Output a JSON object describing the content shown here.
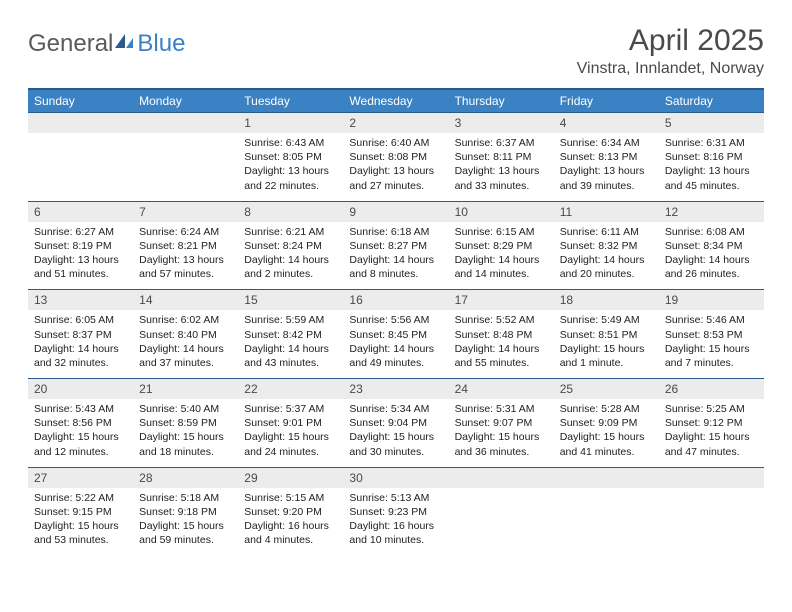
{
  "logo": {
    "word1": "General",
    "word2": "Blue"
  },
  "title": "April 2025",
  "location": "Vinstra, Innlandet, Norway",
  "colors": {
    "header_bg": "#3b82c4",
    "header_border": "#2a5a8a",
    "daynum_bg": "#ececec",
    "text": "#4a4a4a",
    "body_text": "#222222",
    "logo_gray": "#5a5a5a",
    "logo_blue": "#3b82c4",
    "page_bg": "#ffffff"
  },
  "weekdays": [
    "Sunday",
    "Monday",
    "Tuesday",
    "Wednesday",
    "Thursday",
    "Friday",
    "Saturday"
  ],
  "weeks": [
    [
      {
        "blank": true
      },
      {
        "blank": true
      },
      {
        "n": "1",
        "sunrise": "6:43 AM",
        "sunset": "8:05 PM",
        "daylight": "13 hours and 22 minutes."
      },
      {
        "n": "2",
        "sunrise": "6:40 AM",
        "sunset": "8:08 PM",
        "daylight": "13 hours and 27 minutes."
      },
      {
        "n": "3",
        "sunrise": "6:37 AM",
        "sunset": "8:11 PM",
        "daylight": "13 hours and 33 minutes."
      },
      {
        "n": "4",
        "sunrise": "6:34 AM",
        "sunset": "8:13 PM",
        "daylight": "13 hours and 39 minutes."
      },
      {
        "n": "5",
        "sunrise": "6:31 AM",
        "sunset": "8:16 PM",
        "daylight": "13 hours and 45 minutes."
      }
    ],
    [
      {
        "n": "6",
        "sunrise": "6:27 AM",
        "sunset": "8:19 PM",
        "daylight": "13 hours and 51 minutes."
      },
      {
        "n": "7",
        "sunrise": "6:24 AM",
        "sunset": "8:21 PM",
        "daylight": "13 hours and 57 minutes."
      },
      {
        "n": "8",
        "sunrise": "6:21 AM",
        "sunset": "8:24 PM",
        "daylight": "14 hours and 2 minutes."
      },
      {
        "n": "9",
        "sunrise": "6:18 AM",
        "sunset": "8:27 PM",
        "daylight": "14 hours and 8 minutes."
      },
      {
        "n": "10",
        "sunrise": "6:15 AM",
        "sunset": "8:29 PM",
        "daylight": "14 hours and 14 minutes."
      },
      {
        "n": "11",
        "sunrise": "6:11 AM",
        "sunset": "8:32 PM",
        "daylight": "14 hours and 20 minutes."
      },
      {
        "n": "12",
        "sunrise": "6:08 AM",
        "sunset": "8:34 PM",
        "daylight": "14 hours and 26 minutes."
      }
    ],
    [
      {
        "n": "13",
        "sunrise": "6:05 AM",
        "sunset": "8:37 PM",
        "daylight": "14 hours and 32 minutes."
      },
      {
        "n": "14",
        "sunrise": "6:02 AM",
        "sunset": "8:40 PM",
        "daylight": "14 hours and 37 minutes."
      },
      {
        "n": "15",
        "sunrise": "5:59 AM",
        "sunset": "8:42 PM",
        "daylight": "14 hours and 43 minutes."
      },
      {
        "n": "16",
        "sunrise": "5:56 AM",
        "sunset": "8:45 PM",
        "daylight": "14 hours and 49 minutes."
      },
      {
        "n": "17",
        "sunrise": "5:52 AM",
        "sunset": "8:48 PM",
        "daylight": "14 hours and 55 minutes."
      },
      {
        "n": "18",
        "sunrise": "5:49 AM",
        "sunset": "8:51 PM",
        "daylight": "15 hours and 1 minute."
      },
      {
        "n": "19",
        "sunrise": "5:46 AM",
        "sunset": "8:53 PM",
        "daylight": "15 hours and 7 minutes."
      }
    ],
    [
      {
        "n": "20",
        "sunrise": "5:43 AM",
        "sunset": "8:56 PM",
        "daylight": "15 hours and 12 minutes."
      },
      {
        "n": "21",
        "sunrise": "5:40 AM",
        "sunset": "8:59 PM",
        "daylight": "15 hours and 18 minutes."
      },
      {
        "n": "22",
        "sunrise": "5:37 AM",
        "sunset": "9:01 PM",
        "daylight": "15 hours and 24 minutes."
      },
      {
        "n": "23",
        "sunrise": "5:34 AM",
        "sunset": "9:04 PM",
        "daylight": "15 hours and 30 minutes."
      },
      {
        "n": "24",
        "sunrise": "5:31 AM",
        "sunset": "9:07 PM",
        "daylight": "15 hours and 36 minutes."
      },
      {
        "n": "25",
        "sunrise": "5:28 AM",
        "sunset": "9:09 PM",
        "daylight": "15 hours and 41 minutes."
      },
      {
        "n": "26",
        "sunrise": "5:25 AM",
        "sunset": "9:12 PM",
        "daylight": "15 hours and 47 minutes."
      }
    ],
    [
      {
        "n": "27",
        "sunrise": "5:22 AM",
        "sunset": "9:15 PM",
        "daylight": "15 hours and 53 minutes."
      },
      {
        "n": "28",
        "sunrise": "5:18 AM",
        "sunset": "9:18 PM",
        "daylight": "15 hours and 59 minutes."
      },
      {
        "n": "29",
        "sunrise": "5:15 AM",
        "sunset": "9:20 PM",
        "daylight": "16 hours and 4 minutes."
      },
      {
        "n": "30",
        "sunrise": "5:13 AM",
        "sunset": "9:23 PM",
        "daylight": "16 hours and 10 minutes."
      },
      {
        "blank": true
      },
      {
        "blank": true
      },
      {
        "blank": true
      }
    ]
  ],
  "labels": {
    "sunrise_prefix": "Sunrise: ",
    "sunset_prefix": "Sunset: ",
    "daylight_prefix": "Daylight: "
  },
  "typography": {
    "title_fontsize": 30,
    "location_fontsize": 16,
    "header_fontsize": 12,
    "daynum_fontsize": 12,
    "body_fontsize": 10.5
  }
}
